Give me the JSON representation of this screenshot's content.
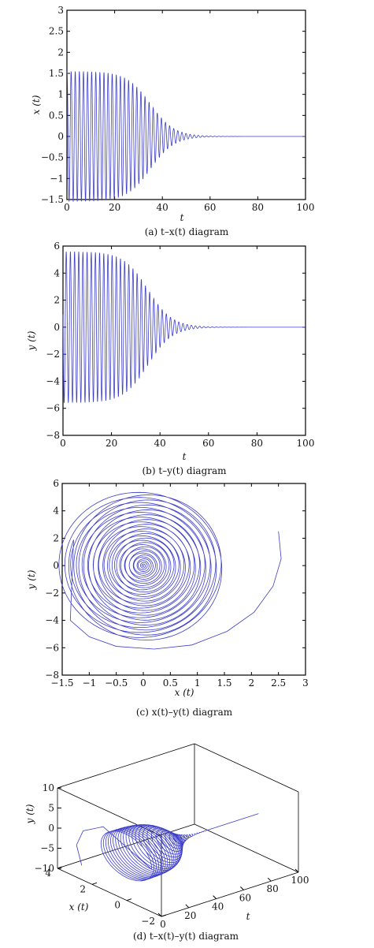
{
  "chart_data": [
    {
      "type": "line",
      "caption": "(a)  t–x(t)  diagram",
      "xlabel": "t",
      "ylabel": "x (t)",
      "xlim": [
        0,
        100
      ],
      "ylim": [
        -1.5,
        3
      ],
      "xticks": [
        "0",
        "20",
        "40",
        "60",
        "80",
        "100"
      ],
      "yticks": [
        "−1.5",
        "−1",
        "−0.5",
        "0",
        "0.5",
        "1",
        "1.5",
        "2",
        "2.5",
        "3"
      ],
      "series": [
        {
          "amplitude_start": 1.55,
          "decay_center_t": 35,
          "decay_width_t": 11,
          "period_t": 1.72,
          "settles_to": 0
        }
      ]
    },
    {
      "type": "line",
      "caption": "(b)  t–y(t)  diagram",
      "xlabel": "t",
      "ylabel": "y (t)",
      "xlim": [
        0,
        100
      ],
      "ylim": [
        -8,
        6
      ],
      "xticks": [
        "0",
        "20",
        "40",
        "60",
        "80",
        "100"
      ],
      "yticks": [
        "−8",
        "−6",
        "−4",
        "−2",
        "0",
        "2",
        "4",
        "6"
      ],
      "series": [
        {
          "amplitude_start": 5.6,
          "decay_center_t": 35,
          "decay_width_t": 11,
          "period_t": 1.72,
          "settles_to": 0
        }
      ]
    },
    {
      "type": "line",
      "caption": "(c)  x(t)–y(t)  diagram",
      "xlabel": "x (t)",
      "ylabel": "y (t)",
      "xlim": [
        -1.5,
        3
      ],
      "ylim": [
        -8,
        6
      ],
      "xticks": [
        "−1.5",
        "−1",
        "−0.5",
        "0",
        "0.5",
        "1",
        "1.5",
        "2",
        "2.5",
        "3"
      ],
      "yticks": [
        "−8",
        "−6",
        "−4",
        "−2",
        "0",
        "2",
        "4",
        "6"
      ],
      "series": [
        {
          "start_point": [
            2.5,
            2.5
          ],
          "outer_rx": 1.5,
          "outer_ry": 5.5,
          "center": [
            0,
            0
          ],
          "spiral": "inward"
        }
      ]
    },
    {
      "type": "line",
      "caption": "(d)  t–x(t)–y(t)  diagram",
      "xlabel": "t",
      "ylabel": "x (t)",
      "zlabel": "y (t)",
      "xlim": [
        0,
        100
      ],
      "ylim": [
        -2,
        4
      ],
      "zlim": [
        -10,
        10
      ],
      "xticks": [
        "0",
        "20",
        "40",
        "60",
        "80",
        "100"
      ],
      "yticks": [
        "−2",
        "0",
        "2",
        "4"
      ],
      "zticks": [
        "−10",
        "−5",
        "0",
        "5",
        "10"
      ],
      "series": [
        {
          "shape": "decaying 3D helix",
          "amplitude_x": 1.5,
          "amplitude_y": 5.5
        }
      ]
    }
  ]
}
